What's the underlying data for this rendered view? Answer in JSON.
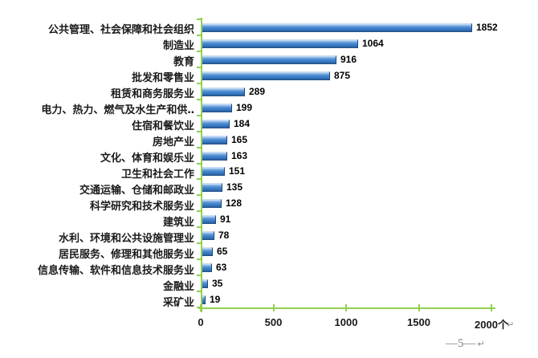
{
  "page": {
    "footer_page_number": "—5—",
    "paragraph_mark": "↵"
  },
  "chart_data": {
    "type": "bar",
    "orientation": "horizontal",
    "title": "",
    "xlabel": "",
    "ylabel": "",
    "unit_suffix": "个",
    "categories": [
      "公共管理、社会保障和社会组织",
      "制造业",
      "教育",
      "批发和零售业",
      "租赁和商务服务业",
      "电力、热力、燃气及水生产和供‥",
      "住宿和餐饮业",
      "房地产业",
      "文化、体育和娱乐业",
      "卫生和社会工作",
      "交通运输、仓储和邮政业",
      "科学研究和技术服务业",
      "建筑业",
      "水利、环境和公共设施管理业",
      "居民服务、修理和其他服务业",
      "信息传输、软件和信息技术服务业",
      "金融业",
      "采矿业"
    ],
    "values": [
      1852,
      1064,
      916,
      875,
      289,
      199,
      184,
      165,
      163,
      151,
      135,
      128,
      91,
      78,
      65,
      63,
      35,
      19
    ],
    "x_ticks": {
      "values": [
        0,
        500,
        1000,
        1500,
        2000
      ],
      "labels": [
        "0",
        "500",
        "1000",
        "1500",
        "2000个"
      ]
    },
    "xlim": [
      0,
      2000
    ],
    "grid": false,
    "legend": "none",
    "data_labels": true,
    "axis_color": "#92D050",
    "bar_color": "#3F7FC9"
  }
}
